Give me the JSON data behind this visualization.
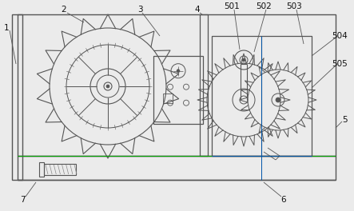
{
  "fig_width": 4.43,
  "fig_height": 2.64,
  "dpi": 100,
  "bg_color": "#ebebeb",
  "line_color": "#555555",
  "line_color2": "#888888"
}
